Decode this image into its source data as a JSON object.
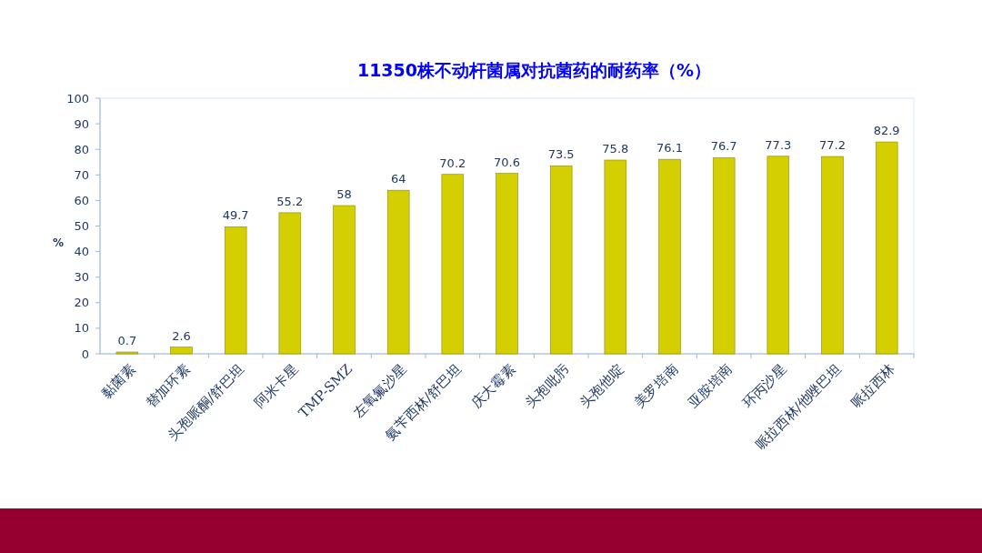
{
  "chart_data": {
    "type": "bar",
    "title": "11350株不动杆菌属对抗菌药的耐药率（%）",
    "ylabel": "%",
    "categories": [
      "黏菌素",
      "替加环素",
      "头孢哌酮/舒巴坦",
      "阿米卡星",
      "TMP-SMZ",
      "左氧氟沙星",
      "氨苄西林/舒巴坦",
      "庆大霉素",
      "头孢吡肟",
      "头孢他啶",
      "美罗培南",
      "亚胺培南",
      "环丙沙星",
      "哌拉西林/他唑巴坦",
      "哌拉西林"
    ],
    "values": [
      0.7,
      2.6,
      49.7,
      55.2,
      58,
      64,
      70.2,
      70.6,
      73.5,
      75.8,
      76.1,
      76.7,
      77.3,
      77.2,
      82.9
    ],
    "color": "#d4cf00",
    "ylim": [
      0,
      100
    ],
    "yticks": [
      0,
      10,
      20,
      30,
      40,
      50,
      60,
      70,
      80,
      90,
      100
    ],
    "data_labels": true
  }
}
